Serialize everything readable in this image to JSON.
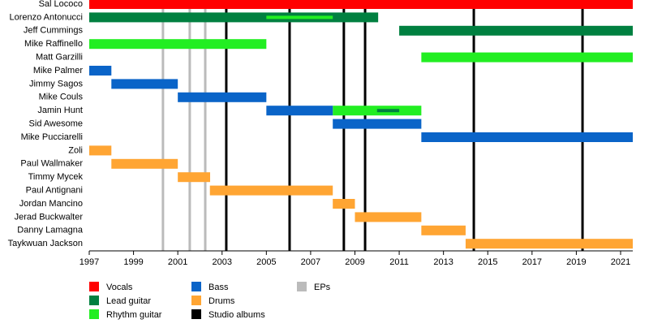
{
  "chart_data": {
    "type": "timeline",
    "categories": [
      "Sal Lococo",
      "Lorenzo Antonucci",
      "Jeff Cummings",
      "Mike Raffinello",
      "Matt Garzilli",
      "Mike Palmer",
      "Jimmy Sagos",
      "Mike Couls",
      "Jamin Hunt",
      "Sid Awesome",
      "Mike Pucciarelli",
      "Zoli",
      "Paul Wallmaker",
      "Timmy Mycek",
      "Paul Antignani",
      "Jordan Mancino",
      "Jerad Buckwalter",
      "Danny Lamagna",
      "Taykwuan Jackson"
    ],
    "series": [
      {
        "name": "Vocals",
        "color": "#ff0000",
        "values": [
          [
            1997,
            2021.55
          ],
          null,
          null,
          null,
          null,
          null,
          null,
          null,
          null,
          null,
          null,
          null,
          null,
          null,
          null,
          null,
          null,
          null,
          null
        ]
      },
      {
        "name": "Lead guitar",
        "color": "#008040",
        "values": [
          null,
          [
            1997,
            2010.05
          ],
          [
            2011,
            2021.55
          ],
          null,
          null,
          null,
          null,
          null,
          [
            2010,
            2011
          ],
          null,
          null,
          null,
          null,
          null,
          null,
          null,
          null,
          null,
          null
        ]
      },
      {
        "name": "Rhythm guitar",
        "color": "#22ee22",
        "values": [
          null,
          [
            2005,
            2008
          ],
          null,
          [
            1997,
            2005
          ],
          [
            2012,
            2021.55
          ],
          null,
          null,
          null,
          [
            2008,
            2012
          ],
          null,
          null,
          null,
          null,
          null,
          null,
          null,
          null,
          null,
          null
        ]
      },
      {
        "name": "Bass",
        "color": "#0a64c8",
        "values": [
          null,
          null,
          null,
          null,
          null,
          [
            1997,
            1998
          ],
          [
            1998,
            2001
          ],
          [
            2001,
            2005
          ],
          [
            2005,
            2008
          ],
          [
            2008,
            2012
          ],
          [
            2012,
            2021.55
          ],
          null,
          null,
          null,
          null,
          null,
          null,
          null,
          null
        ]
      },
      {
        "name": "Drums",
        "color": "#ffa533",
        "values": [
          null,
          null,
          null,
          null,
          null,
          null,
          null,
          null,
          null,
          null,
          null,
          [
            1997,
            1998
          ],
          [
            1998,
            2001
          ],
          [
            2001,
            2002.46
          ],
          [
            2002.45,
            2008
          ],
          [
            2008,
            2009
          ],
          [
            2009,
            2012
          ],
          [
            2012,
            2014
          ],
          [
            2014,
            2021.55
          ]
        ]
      }
    ],
    "events": [
      {
        "name": "Studio albums",
        "color": "#000000",
        "values": [
          2003.19,
          2006.05,
          2008.5,
          2009.46,
          2014.37,
          2019.28
        ]
      },
      {
        "name": "EPs",
        "color": "#bbbbbb",
        "values": [
          2000.33,
          2001.54,
          2002.24
        ]
      }
    ],
    "xlim": [
      1997,
      2021.55
    ],
    "xticks": [
      1997,
      1999,
      2001,
      2003,
      2005,
      2007,
      2009,
      2011,
      2013,
      2015,
      2017,
      2019,
      2021
    ]
  }
}
